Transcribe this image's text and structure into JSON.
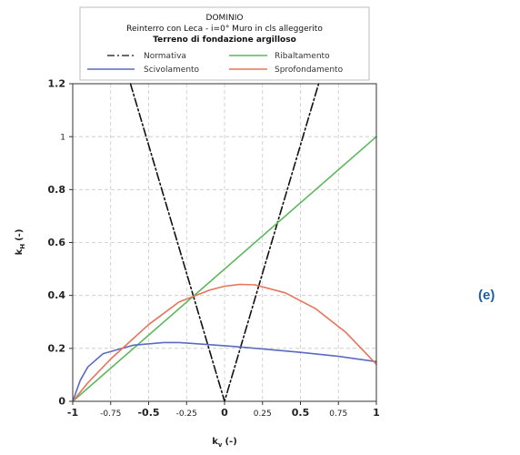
{
  "panel_tag": "(e)",
  "chart_data": {
    "type": "line",
    "legend": {
      "title_lines": [
        "DOMINIO",
        "Reinterro con Leca - i=0° Muro in cls alleggerito",
        "Terreno di fondazione argilloso"
      ],
      "placement": "top"
    },
    "xlabel": "k",
    "xlabel_sub": "v",
    "xlabel_unit": "(-)",
    "ylabel": "k",
    "ylabel_sub": "H",
    "ylabel_unit": "(-)",
    "xlim": [
      -1,
      1
    ],
    "ylim": [
      0,
      1.2
    ],
    "grid": true,
    "x_ticks": [
      {
        "value": -1,
        "label": "-1",
        "major": true
      },
      {
        "value": -0.75,
        "label": "-0.75",
        "major": false
      },
      {
        "value": -0.5,
        "label": "-0.5",
        "major": true
      },
      {
        "value": -0.25,
        "label": "-0.25",
        "major": false
      },
      {
        "value": 0,
        "label": "0",
        "major": true
      },
      {
        "value": 0.25,
        "label": "0.25",
        "major": false
      },
      {
        "value": 0.5,
        "label": "0.5",
        "major": true
      },
      {
        "value": 0.75,
        "label": "0.75",
        "major": false
      },
      {
        "value": 1,
        "label": "1",
        "major": true
      }
    ],
    "y_ticks": [
      {
        "value": 0,
        "label": "0",
        "major": true
      },
      {
        "value": 0.2,
        "label": "0.2",
        "major": true
      },
      {
        "value": 0.4,
        "label": "0.4",
        "major": true
      },
      {
        "value": 0.6,
        "label": "0.6",
        "major": true
      },
      {
        "value": 0.8,
        "label": "0.8",
        "major": true
      },
      {
        "value": 1,
        "label": "1",
        "major": false
      },
      {
        "value": 1.2,
        "label": "1.2",
        "major": true
      }
    ],
    "series": [
      {
        "name": "Normativa",
        "color": "#111111",
        "dash": "dashdot",
        "x": [
          -0.62,
          0,
          0.62
        ],
        "y": [
          1.2,
          0,
          1.2
        ]
      },
      {
        "name": "Ribaltamento",
        "color": "#5cb85c",
        "dash": "solid",
        "x": [
          -1,
          1
        ],
        "y": [
          0,
          1.0
        ]
      },
      {
        "name": "Scivolamento",
        "color": "#5b6bbf",
        "dash": "solid",
        "x": [
          -1,
          -0.95,
          -0.9,
          -0.8,
          -0.6,
          -0.4,
          -0.3,
          -0.2,
          0,
          0.25,
          0.5,
          0.75,
          1
        ],
        "y": [
          0,
          0.08,
          0.13,
          0.18,
          0.212,
          0.222,
          0.222,
          0.218,
          0.21,
          0.198,
          0.185,
          0.17,
          0.15
        ]
      },
      {
        "name": "Sprofondamento",
        "color": "#e8735a",
        "dash": "solid",
        "x": [
          -1,
          -0.9,
          -0.75,
          -0.5,
          -0.3,
          -0.1,
          0,
          0.1,
          0.2,
          0.4,
          0.6,
          0.8,
          0.9,
          1
        ],
        "y": [
          0,
          0.07,
          0.16,
          0.29,
          0.375,
          0.42,
          0.435,
          0.442,
          0.44,
          0.41,
          0.35,
          0.26,
          0.2,
          0.14
        ]
      }
    ]
  }
}
